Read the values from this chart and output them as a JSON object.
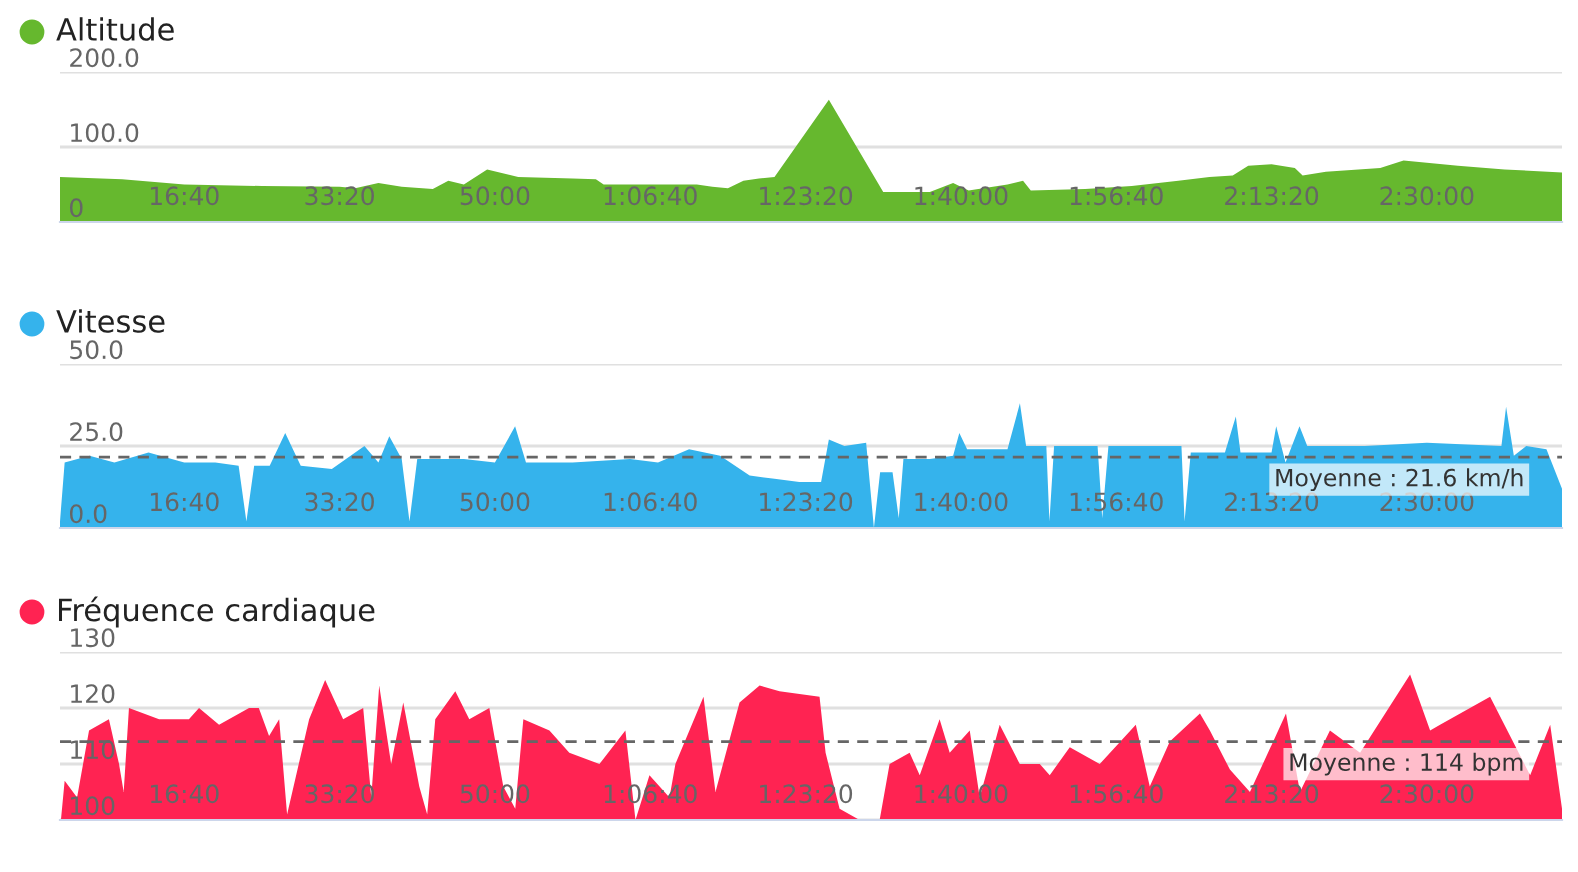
{
  "chart_data": [
    {
      "type": "area",
      "title": "Altitude",
      "grid": "y",
      "xlim": [
        200,
        9870
      ],
      "xticks": [
        {
          "value": 1000,
          "label": "16:40"
        },
        {
          "value": 2000,
          "label": "33:20"
        },
        {
          "value": 3000,
          "label": "50:00"
        },
        {
          "value": 4000,
          "label": "1:06:40"
        },
        {
          "value": 5000,
          "label": "1:23:20"
        },
        {
          "value": 6000,
          "label": "1:40:00"
        },
        {
          "value": 7000,
          "label": "1:56:40"
        },
        {
          "value": 8000,
          "label": "2:13:20"
        },
        {
          "value": 9000,
          "label": "2:30:00"
        }
      ],
      "ylim": [
        0,
        200
      ],
      "yticks": [
        {
          "value": 0,
          "label": "0"
        },
        {
          "value": 100,
          "label": "100.0"
        },
        {
          "value": 200,
          "label": "200.0"
        }
      ],
      "series": [
        {
          "color": "#66b82e",
          "x": [
            200,
            600,
            1000,
            1500,
            2000,
            2100,
            2250,
            2400,
            2600,
            2700,
            2800,
            2950,
            3150,
            3500,
            3650,
            3700,
            4000,
            4300,
            4400,
            4500,
            4600,
            4700,
            4800,
            5150,
            5500,
            5800,
            5950,
            6050,
            6300,
            6400,
            6450,
            6800,
            7100,
            7400,
            7600,
            7750,
            7850,
            8000,
            8150,
            8200,
            8350,
            8700,
            8850,
            9200,
            9500,
            9870
          ],
          "values": [
            60,
            57,
            50,
            48,
            47,
            45,
            52,
            47,
            44,
            55,
            50,
            70,
            60,
            58,
            57,
            50,
            50,
            50,
            47,
            45,
            55,
            58,
            60,
            163,
            40,
            40,
            52,
            42,
            50,
            55,
            42,
            44,
            48,
            55,
            60,
            62,
            75,
            77,
            72,
            62,
            67,
            72,
            82,
            75,
            70,
            66
          ]
        }
      ]
    },
    {
      "type": "area",
      "title": "Vitesse",
      "grid": "y",
      "xlim": [
        200,
        9870
      ],
      "xticks": [
        {
          "value": 1000,
          "label": "16:40"
        },
        {
          "value": 2000,
          "label": "33:20"
        },
        {
          "value": 3000,
          "label": "50:00"
        },
        {
          "value": 4000,
          "label": "1:06:40"
        },
        {
          "value": 5000,
          "label": "1:23:20"
        },
        {
          "value": 6000,
          "label": "1:40:00"
        },
        {
          "value": 7000,
          "label": "1:56:40"
        },
        {
          "value": 8000,
          "label": "2:13:20"
        },
        {
          "value": 9000,
          "label": "2:30:00"
        }
      ],
      "ylim": [
        0,
        50
      ],
      "yticks": [
        {
          "value": 0,
          "label": "0.0"
        },
        {
          "value": 25,
          "label": "25.0"
        },
        {
          "value": 50,
          "label": "50.0"
        }
      ],
      "ref_lines": [
        {
          "axis": "y",
          "value": 21.6,
          "label": "Moyenne : 21.6 km/h",
          "color": "#666666",
          "line_style": "dashed"
        }
      ],
      "series": [
        {
          "color": "#35b3ec",
          "x": [
            200,
            230,
            390,
            550,
            770,
            1000,
            1200,
            1350,
            1400,
            1450,
            1550,
            1650,
            1750,
            1950,
            2160,
            2250,
            2320,
            2400,
            2450,
            2500,
            2800,
            3000,
            3130,
            3200,
            3500,
            3870,
            4050,
            4250,
            4450,
            4640,
            4800,
            4960,
            5100,
            5150,
            5250,
            5390,
            5440,
            5480,
            5560,
            5600,
            5630,
            5800,
            5950,
            5990,
            6040,
            6300,
            6380,
            6420,
            6550,
            6570,
            6600,
            6880,
            6910,
            6950,
            7200,
            7420,
            7440,
            7480,
            7700,
            7770,
            7800,
            8000,
            8030,
            8090,
            8180,
            8230,
            8600,
            9000,
            9480,
            9510,
            9560,
            9640,
            9770,
            9870
          ],
          "values": [
            2,
            20,
            22,
            20,
            23,
            20,
            20,
            19,
            2,
            19,
            19,
            29,
            19,
            18,
            25,
            20,
            28,
            21,
            2,
            21,
            21,
            20,
            31,
            20,
            20,
            21,
            20,
            24,
            22,
            16,
            15,
            14,
            14,
            27,
            25,
            26,
            0,
            17,
            17,
            3,
            21,
            21,
            22,
            29,
            24,
            24,
            38,
            25,
            25,
            2,
            25,
            25,
            3,
            25,
            25,
            25,
            2,
            23,
            23,
            34,
            23,
            23,
            31,
            20,
            31,
            25,
            25,
            26,
            25,
            37,
            22,
            25,
            24,
            12
          ]
        }
      ]
    },
    {
      "type": "area",
      "title": "Fréquence cardiaque",
      "grid": "y",
      "xlim": [
        200,
        9870
      ],
      "xticks": [
        {
          "value": 1000,
          "label": "16:40"
        },
        {
          "value": 2000,
          "label": "33:20"
        },
        {
          "value": 3000,
          "label": "50:00"
        },
        {
          "value": 4000,
          "label": "1:06:40"
        },
        {
          "value": 5000,
          "label": "1:23:20"
        },
        {
          "value": 6000,
          "label": "1:40:00"
        },
        {
          "value": 7000,
          "label": "1:56:40"
        },
        {
          "value": 8000,
          "label": "2:13:20"
        },
        {
          "value": 9000,
          "label": "2:30:00"
        }
      ],
      "ylim": [
        100,
        130
      ],
      "yticks": [
        100,
        110,
        120,
        130
      ],
      "ref_lines": [
        {
          "axis": "y",
          "value": 114,
          "label": "Moyenne : 114 bpm",
          "color": "#666666",
          "line_style": "dashed"
        }
      ],
      "series": [
        {
          "color": "#ff2352",
          "x": [
            206,
            230,
            310,
            387,
            515,
            580,
            610,
            644,
            838,
            1030,
            1095,
            1224,
            1417,
            1480,
            1546,
            1611,
            1662,
            1804,
            1907,
            2023,
            2152,
            2204,
            2255,
            2332,
            2410,
            2513,
            2564,
            2616,
            2745,
            2835,
            2964,
            3054,
            3131,
            3183,
            3351,
            3479,
            3673,
            3840,
            3905,
            3995,
            4124,
            4162,
            4343,
            4420,
            4575,
            4704,
            4832,
            5090,
            5129,
            5219,
            5348,
            5477,
            5541,
            5670,
            5735,
            5863,
            5928,
            6057,
            6121,
            6250,
            6379,
            6508,
            6572,
            6701,
            6894,
            7126,
            7216,
            7345,
            7539,
            7603,
            7732,
            7861,
            8093,
            8183,
            8376,
            8570,
            8892,
            9021,
            9085,
            9407,
            9536,
            9665,
            9794,
            9870
          ],
          "values": [
            100,
            107,
            104,
            116,
            118,
            110,
            105,
            120,
            118,
            118,
            120,
            117,
            120,
            120,
            115,
            118,
            101,
            118,
            125,
            118,
            120,
            104,
            124,
            110,
            121,
            106,
            101,
            118,
            123,
            118,
            120,
            106,
            102,
            118,
            116,
            112,
            110,
            116,
            100,
            108,
            104,
            110,
            122,
            105,
            121,
            124,
            123,
            122,
            112,
            102,
            100,
            100,
            110,
            112,
            108,
            118,
            112,
            116,
            104,
            117,
            110,
            110,
            108,
            113,
            110,
            117,
            106,
            114,
            119,
            116,
            109,
            105,
            119,
            105,
            116,
            112,
            126,
            116,
            117,
            122,
            115,
            108,
            117,
            102
          ]
        }
      ]
    }
  ]
}
